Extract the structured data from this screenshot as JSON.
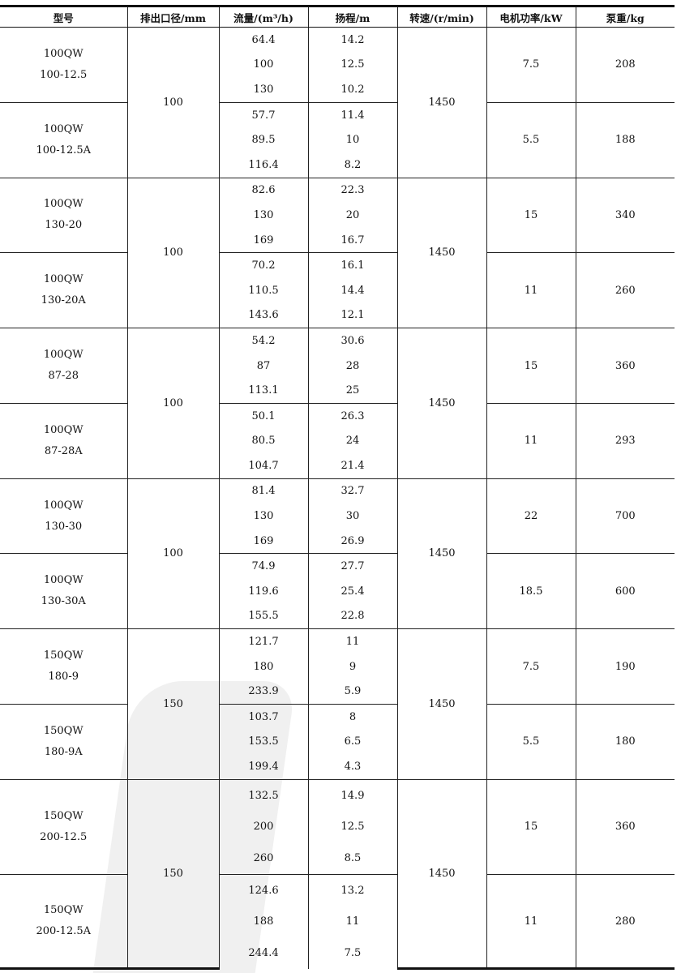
{
  "headers": [
    "型号",
    "排出口径/mm",
    "流量/(m³/h)",
    "扬程/m",
    "转速/(r/min)",
    "电机功率/kW",
    "泵重/kg"
  ],
  "pairs": [
    {
      "diameter": "100",
      "speed": "1450",
      "pumps": [
        {
          "model": [
            "100QW",
            "100-12.5"
          ],
          "flow": [
            "64.4",
            "100",
            "130"
          ],
          "head": [
            "14.2",
            "12.5",
            "10.2"
          ],
          "power": "7.5",
          "weight": "208"
        },
        {
          "model": [
            "100QW",
            "100-12.5A"
          ],
          "flow": [
            "57.7",
            "89.5",
            "116.4"
          ],
          "head": [
            "11.4",
            "10",
            "8.2"
          ],
          "power": "5.5",
          "weight": "188"
        }
      ]
    },
    {
      "diameter": "100",
      "speed": "1450",
      "pumps": [
        {
          "model": [
            "100QW",
            "130-20"
          ],
          "flow": [
            "82.6",
            "130",
            "169"
          ],
          "head": [
            "22.3",
            "20",
            "16.7"
          ],
          "power": "15",
          "weight": "340"
        },
        {
          "model": [
            "100QW",
            "130-20A"
          ],
          "flow": [
            "70.2",
            "110.5",
            "143.6"
          ],
          "head": [
            "16.1",
            "14.4",
            "12.1"
          ],
          "power": "11",
          "weight": "260"
        }
      ]
    },
    {
      "diameter": "100",
      "speed": "1450",
      "pumps": [
        {
          "model": [
            "100QW",
            "87-28"
          ],
          "flow": [
            "54.2",
            "87",
            "113.1"
          ],
          "head": [
            "30.6",
            "28",
            "25"
          ],
          "power": "15",
          "weight": "360"
        },
        {
          "model": [
            "100QW",
            "87-28A"
          ],
          "flow": [
            "50.1",
            "80.5",
            "104.7"
          ],
          "head": [
            "26.3",
            "24",
            "21.4"
          ],
          "power": "11",
          "weight": "293"
        }
      ]
    },
    {
      "diameter": "100",
      "speed": "1450",
      "pumps": [
        {
          "model": [
            "100QW",
            "130-30"
          ],
          "flow": [
            "81.4",
            "130",
            "169"
          ],
          "head": [
            "32.7",
            "30",
            "26.9"
          ],
          "power": "22",
          "weight": "700"
        },
        {
          "model": [
            "100QW",
            "130-30A"
          ],
          "flow": [
            "74.9",
            "119.6",
            "155.5"
          ],
          "head": [
            "27.7",
            "25.4",
            "22.8"
          ],
          "power": "18.5",
          "weight": "600"
        }
      ]
    },
    {
      "diameter": "150",
      "speed": "1450",
      "pumps": [
        {
          "model": [
            "150QW",
            "180-9"
          ],
          "flow": [
            "121.7",
            "180",
            "233.9"
          ],
          "head": [
            "11",
            "9",
            "5.9"
          ],
          "power": "7.5",
          "weight": "190"
        },
        {
          "model": [
            "150QW",
            "180-9A"
          ],
          "flow": [
            "103.7",
            "153.5",
            "199.4"
          ],
          "head": [
            "8",
            "6.5",
            "4.3"
          ],
          "power": "5.5",
          "weight": "180"
        }
      ]
    },
    {
      "diameter": "150",
      "speed": "1450",
      "pumps": [
        {
          "model": [
            "150QW",
            "200-12.5"
          ],
          "flow": [
            "132.5",
            "200",
            "260"
          ],
          "head": [
            "14.9",
            "12.5",
            "8.5"
          ],
          "power": "15",
          "weight": "360"
        },
        {
          "model": [
            "150QW",
            "200-12.5A"
          ],
          "flow": [
            "124.6",
            "188",
            "244.4"
          ],
          "head": [
            "13.2",
            "11",
            "7.5"
          ],
          "power": "11",
          "weight": "280"
        }
      ]
    }
  ]
}
